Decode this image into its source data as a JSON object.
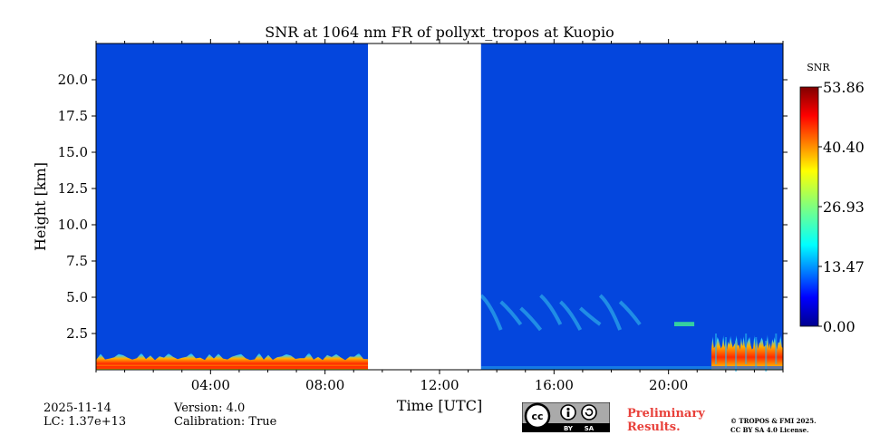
{
  "chart_data": {
    "type": "heatmap",
    "title": "SNR at 1064 nm FR of pollyxt_tropos at Kuopio",
    "xlabel": "Time [UTC]",
    "ylabel": "Height [km]",
    "xlim": [
      0,
      24
    ],
    "ylim": [
      0,
      22.5
    ],
    "x_ticks": [
      4,
      8,
      12,
      16,
      20
    ],
    "x_tick_labels": [
      "04:00",
      "08:00",
      "12:00",
      "16:00",
      "20:00"
    ],
    "y_ticks": [
      2.5,
      5.0,
      7.5,
      10.0,
      12.5,
      15.0,
      17.5,
      20.0
    ],
    "y_tick_labels": [
      "2.5",
      "5.0",
      "7.5",
      "10.0",
      "12.5",
      "15.0",
      "17.5",
      "20.0"
    ],
    "no_data_intervals": [
      [
        9.5,
        13.45
      ]
    ],
    "colorbar": {
      "label": "SNR",
      "min": 0.0,
      "max": 53.86,
      "ticks": [
        0.0,
        13.47,
        26.93,
        40.4,
        53.86
      ],
      "tick_labels": [
        "0.00",
        "13.47",
        "26.93",
        "40.40",
        "53.86"
      ],
      "colormap": "jet"
    },
    "features": [
      {
        "name": "near-surface high SNR layer (morning)",
        "x_range": [
          0,
          9.5
        ],
        "height_km": [
          0,
          1.2
        ],
        "snr_max": 53.86
      },
      {
        "name": "elevated aerosol layer",
        "x_range": [
          13.45,
          19.0
        ],
        "height_km": [
          2.5,
          5.5
        ],
        "snr_approx": 12
      },
      {
        "name": "thin layer near 3.2 km",
        "x_range": [
          20.2,
          20.9
        ],
        "height_km": [
          3.0,
          3.3
        ],
        "snr_approx": 22
      },
      {
        "name": "near-surface layer (late evening)",
        "x_range": [
          21.5,
          24
        ],
        "height_km": [
          0,
          2.5
        ],
        "snr_max": 45
      }
    ]
  },
  "footer": {
    "date": "2025-11-14",
    "lc": "LC: 1.37e+13",
    "version": "Version: 4.0",
    "calibration": "Calibration: True",
    "preliminary_line1": "Preliminary",
    "preliminary_line2": "Results.",
    "copyright_line1": "© TROPOS & FMI 2025.",
    "copyright_line2": "CC BY SA 4.0 License.",
    "badge_by": "BY",
    "badge_sa": "SA"
  },
  "colors": {
    "background_field": "#0446dd",
    "no_data": "#ffffff",
    "badge_gray": "#aaaaaa",
    "preliminary_red": "#e8403a"
  }
}
